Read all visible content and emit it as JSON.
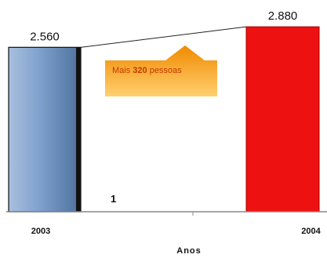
{
  "chart_data": {
    "type": "bar",
    "categories": [
      "2003",
      "2004"
    ],
    "values": [
      2560,
      2880
    ],
    "value_labels": [
      "2.560",
      "2.880"
    ],
    "xlabel": "Anos",
    "ylabel": "",
    "ylim": [
      0,
      3000
    ],
    "bar_colors": [
      "#7d9fcc",
      "#ee1111"
    ],
    "grid": false,
    "legend": "none",
    "annotation": {
      "prefix": "Mais ",
      "number": "320",
      "suffix": " pessoas",
      "color": "#f7a020"
    },
    "stray_label": "1"
  }
}
